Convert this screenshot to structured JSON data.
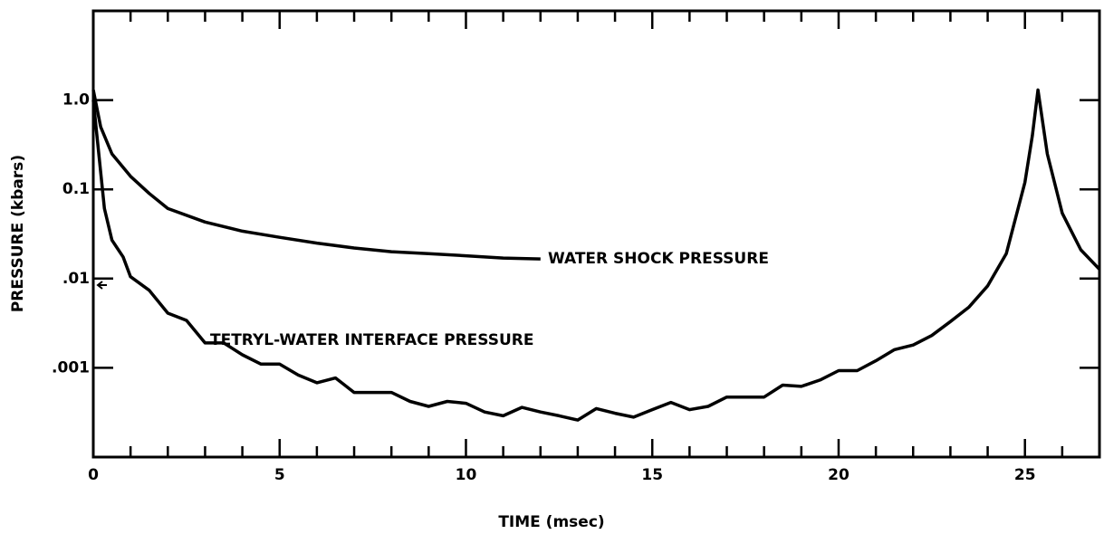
{
  "chart_data": {
    "type": "line",
    "xlabel": "TIME (msec)",
    "ylabel": "PRESSURE (kbars)",
    "xlim": [
      0,
      27
    ],
    "xticks": [
      0,
      5,
      10,
      15,
      20,
      25
    ],
    "xminorticks": [
      1,
      2,
      3,
      4,
      6,
      7,
      8,
      9,
      11,
      12,
      13,
      14,
      16,
      17,
      18,
      19,
      21,
      22,
      23,
      24,
      26
    ],
    "ylim": [
      0.0001,
      10
    ],
    "yscale": "log",
    "yticks": [
      {
        "value": 1,
        "label": "1.0"
      },
      0.1,
      {
        "value": 0.01,
        "label": ".01"
      },
      {
        "value": 0.001,
        "label": ".001"
      }
    ],
    "series": [
      {
        "name": "WATER SHOCK PRESSURE",
        "color": "#000000",
        "x": [
          0,
          0.2,
          0.5,
          1,
          1.5,
          2,
          3,
          4,
          5,
          6,
          7,
          8,
          9,
          10,
          11,
          12
        ],
        "values": [
          1.3,
          0.5,
          0.25,
          0.14,
          0.09,
          0.061,
          0.043,
          0.034,
          0.029,
          0.025,
          0.022,
          0.02,
          0.019,
          0.018,
          0.017,
          0.0166
        ]
      },
      {
        "name": "TETRYL-WATER INTERFACE PRESSURE",
        "color": "#000000",
        "x": [
          0,
          0.3,
          0.5,
          0.8,
          1,
          1.5,
          2,
          2.5,
          3,
          3.5,
          4,
          4.5,
          5,
          5.5,
          6,
          6.5,
          7,
          7.5,
          8,
          8.5,
          9,
          9.5,
          10,
          10.5,
          11,
          11.5,
          12,
          12.5,
          13,
          13.5,
          14,
          14.5,
          15,
          15.5,
          16,
          16.5,
          17,
          17.5,
          18,
          18.5,
          19,
          19.5,
          20,
          20.5,
          21,
          21.5,
          22,
          22.5,
          23,
          23.5,
          24,
          24.5,
          25,
          25.2,
          25.35,
          25.6,
          26,
          26.5,
          27
        ],
        "values": [
          1.0,
          0.061,
          0.027,
          0.0175,
          0.0105,
          0.0074,
          0.0041,
          0.0034,
          0.0019,
          0.0019,
          0.0014,
          0.0011,
          0.0011,
          0.00083,
          0.00068,
          0.00077,
          0.00053,
          0.00053,
          0.00053,
          0.00042,
          0.00037,
          0.00042,
          0.0004,
          0.00032,
          0.00029,
          0.00036,
          0.00032,
          0.00029,
          0.00026,
          0.00035,
          0.00031,
          0.00028,
          0.00034,
          0.00041,
          0.00034,
          0.00037,
          0.00047,
          0.00047,
          0.00047,
          0.00064,
          0.00062,
          0.00073,
          0.00093,
          0.00093,
          0.0012,
          0.0016,
          0.0018,
          0.0023,
          0.0033,
          0.0048,
          0.0083,
          0.019,
          0.12,
          0.4,
          1.3,
          0.25,
          0.054,
          0.021,
          0.0127
        ]
      }
    ]
  }
}
